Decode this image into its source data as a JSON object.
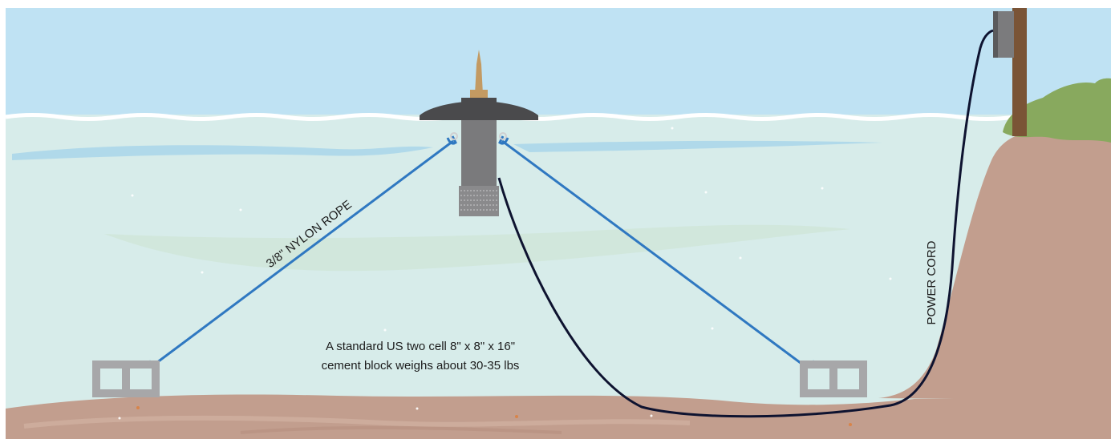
{
  "labels": {
    "rope": "3/8\" NYLON ROPE",
    "power_cord": "POWER CORD",
    "block_note_line1": "A standard US two cell 8\" x 8\" x 16\"",
    "block_note_line2": "cement block weighs about 30-35 lbs"
  },
  "colors": {
    "sky": "#bfe2f3",
    "water": "#d7ecea",
    "water_stripe": "#a9d6ea",
    "lakebed": "#c29e8e",
    "bank": "#c29e8e",
    "grass": "#88a95e",
    "post": "#7a5436",
    "rope": "#2f78c1",
    "cord": "#0e1330",
    "aerator_body": "#7a7a7c",
    "aerator_float": "#4a4a4c",
    "mast": "#c39a62",
    "block": "#a7a7a9"
  }
}
